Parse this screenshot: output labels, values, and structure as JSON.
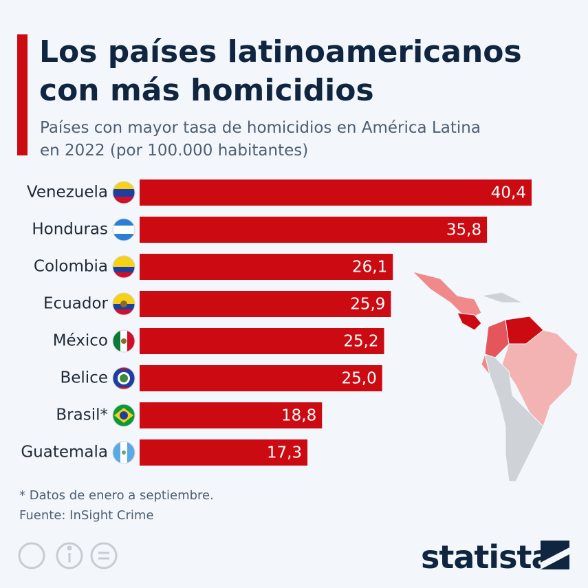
{
  "title": "Los países latinoamericanos con más homicidios",
  "title_lines": [
    "Los países latinoamericanos",
    "con más homicidios"
  ],
  "subtitle_lines": [
    "Países con mayor tasa de homicidios en América Latina",
    "en 2022 (por 100.000 habitantes)"
  ],
  "chart_data": {
    "type": "bar",
    "orientation": "horizontal",
    "categories": [
      "Venezuela",
      "Honduras",
      "Colombia",
      "Ecuador",
      "México",
      "Belice",
      "Brasil*",
      "Guatemala"
    ],
    "values": [
      40.4,
      35.8,
      26.1,
      25.9,
      25.2,
      25.0,
      18.8,
      17.3
    ],
    "value_labels": [
      "40,4",
      "35,8",
      "26,1",
      "25,9",
      "25,2",
      "25,0",
      "18,8",
      "17,3"
    ],
    "color": "#cc0a12"
  },
  "footnote": "* Datos de enero a septiembre.",
  "source": "Fuente: InSight Crime",
  "brand": "statista"
}
